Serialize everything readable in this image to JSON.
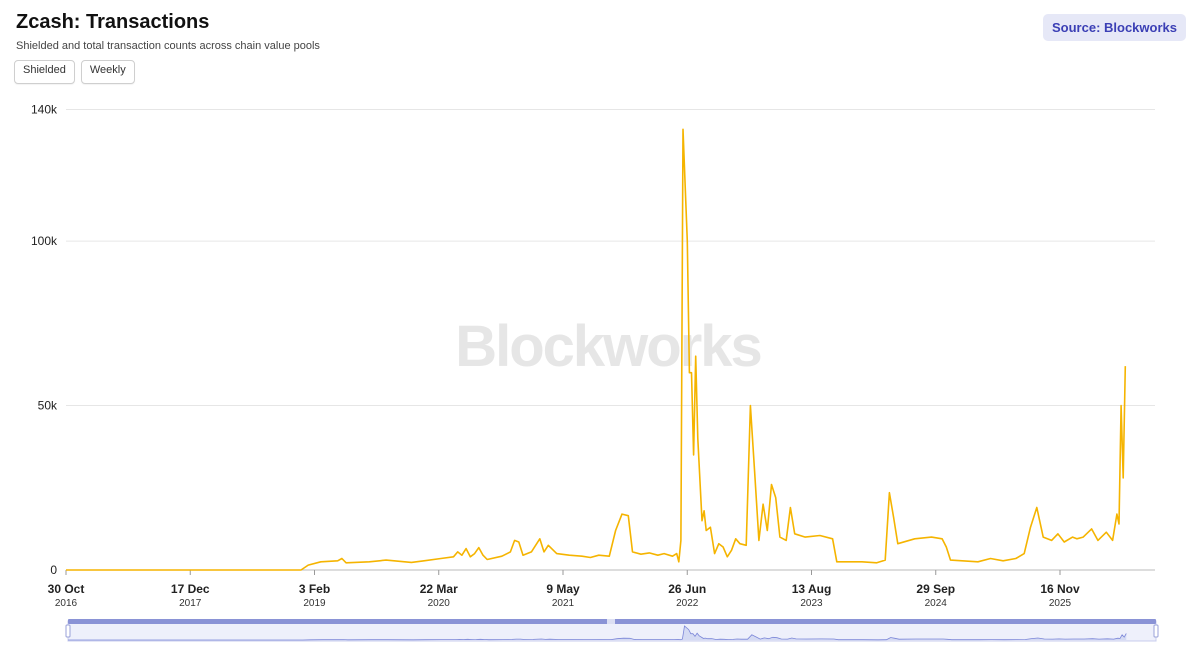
{
  "header": {
    "title": "Zcash: Transactions",
    "subtitle": "Shielded and total transaction counts across chain value pools"
  },
  "controls": {
    "metric_label": "Shielded",
    "interval_label": "Weekly"
  },
  "source_button": {
    "label": "Source: Blockworks"
  },
  "watermark": "Blockworks",
  "colors": {
    "line": "#f5b400",
    "grid": "#e6e6e6",
    "navigator_fill": "#c9d0f0",
    "navigator_handle": "#8a93d6",
    "navigator_line": "#7b86d8"
  },
  "chart_data": {
    "type": "line",
    "x_axis": {
      "range": [
        "2016-10-30",
        "2026-01-18"
      ],
      "ticks": [
        {
          "date": "2016-10-30",
          "label": "30 Oct",
          "year": "2016"
        },
        {
          "date": "2017-12-17",
          "label": "17 Dec",
          "year": "2017"
        },
        {
          "date": "2019-02-03",
          "label": "3 Feb",
          "year": "2019"
        },
        {
          "date": "2020-03-22",
          "label": "22 Mar",
          "year": "2020"
        },
        {
          "date": "2021-05-09",
          "label": "9 May",
          "year": "2021"
        },
        {
          "date": "2022-06-26",
          "label": "26 Jun",
          "year": "2022"
        },
        {
          "date": "2023-08-13",
          "label": "13 Aug",
          "year": "2023"
        },
        {
          "date": "2024-09-29",
          "label": "29 Sep",
          "year": "2024"
        },
        {
          "date": "2025-11-16",
          "label": "16 Nov",
          "year": "2025"
        }
      ]
    },
    "y_axis": {
      "range": [
        0,
        135000
      ],
      "ticks": [
        {
          "value": 0,
          "label": "0"
        },
        {
          "value": 50000,
          "label": "50k"
        },
        {
          "value": 100000,
          "label": "100k"
        },
        {
          "value": 140000,
          "label": "140k"
        }
      ],
      "grid": true
    },
    "series": [
      {
        "points": [
          [
            "2016-10-30",
            0
          ],
          [
            "2017-06-01",
            0
          ],
          [
            "2018-01-01",
            0
          ],
          [
            "2018-06-01",
            0
          ],
          [
            "2018-12-20",
            0
          ],
          [
            "2019-01-13",
            1500
          ],
          [
            "2019-02-24",
            2500
          ],
          [
            "2019-04-21",
            2800
          ],
          [
            "2019-05-05",
            3500
          ],
          [
            "2019-05-19",
            2200
          ],
          [
            "2019-08-04",
            2500
          ],
          [
            "2019-09-29",
            3000
          ],
          [
            "2019-12-22",
            2300
          ],
          [
            "2020-02-02",
            2800
          ],
          [
            "2020-03-29",
            3500
          ],
          [
            "2020-05-10",
            4000
          ],
          [
            "2020-05-24",
            5500
          ],
          [
            "2020-06-07",
            4500
          ],
          [
            "2020-06-21",
            6500
          ],
          [
            "2020-07-05",
            4000
          ],
          [
            "2020-07-19",
            5000
          ],
          [
            "2020-08-02",
            6800
          ],
          [
            "2020-08-16",
            4500
          ],
          [
            "2020-08-30",
            3200
          ],
          [
            "2020-10-18",
            4200
          ],
          [
            "2020-11-15",
            5500
          ],
          [
            "2020-11-29",
            9000
          ],
          [
            "2020-12-13",
            8500
          ],
          [
            "2020-12-27",
            4500
          ],
          [
            "2021-01-24",
            5500
          ],
          [
            "2021-02-21",
            9500
          ],
          [
            "2021-03-07",
            5500
          ],
          [
            "2021-03-21",
            7500
          ],
          [
            "2021-04-18",
            5000
          ],
          [
            "2021-05-30",
            4500
          ],
          [
            "2021-07-11",
            4200
          ],
          [
            "2021-08-08",
            3800
          ],
          [
            "2021-09-05",
            4500
          ],
          [
            "2021-10-10",
            4200
          ],
          [
            "2021-10-31",
            12000
          ],
          [
            "2021-11-21",
            17000
          ],
          [
            "2021-12-12",
            16500
          ],
          [
            "2021-12-26",
            5500
          ],
          [
            "2022-01-23",
            4800
          ],
          [
            "2022-02-20",
            5200
          ],
          [
            "2022-03-20",
            4500
          ],
          [
            "2022-04-10",
            5000
          ],
          [
            "2022-05-08",
            4200
          ],
          [
            "2022-05-22",
            5000
          ],
          [
            "2022-05-29",
            2500
          ],
          [
            "2022-06-05",
            9000
          ],
          [
            "2022-06-12",
            134000
          ],
          [
            "2022-06-26",
            100000
          ],
          [
            "2022-07-03",
            60000
          ],
          [
            "2022-07-10",
            60000
          ],
          [
            "2022-07-17",
            35000
          ],
          [
            "2022-07-24",
            65000
          ],
          [
            "2022-07-31",
            40000
          ],
          [
            "2022-08-14",
            15000
          ],
          [
            "2022-08-21",
            18000
          ],
          [
            "2022-08-28",
            12000
          ],
          [
            "2022-09-11",
            13000
          ],
          [
            "2022-09-25",
            5000
          ],
          [
            "2022-10-09",
            8000
          ],
          [
            "2022-10-23",
            7000
          ],
          [
            "2022-11-06",
            4000
          ],
          [
            "2022-11-20",
            6000
          ],
          [
            "2022-12-04",
            9500
          ],
          [
            "2022-12-18",
            8000
          ],
          [
            "2023-01-08",
            7500
          ],
          [
            "2023-01-22",
            50000
          ],
          [
            "2023-02-05",
            30000
          ],
          [
            "2023-02-19",
            9000
          ],
          [
            "2023-03-05",
            20000
          ],
          [
            "2023-03-19",
            12000
          ],
          [
            "2023-04-02",
            26000
          ],
          [
            "2023-04-16",
            22000
          ],
          [
            "2023-04-30",
            10000
          ],
          [
            "2023-05-21",
            9000
          ],
          [
            "2023-06-04",
            19000
          ],
          [
            "2023-06-18",
            11000
          ],
          [
            "2023-07-23",
            10000
          ],
          [
            "2023-09-10",
            10500
          ],
          [
            "2023-10-22",
            9500
          ],
          [
            "2023-11-05",
            2500
          ],
          [
            "2024-01-28",
            2500
          ],
          [
            "2024-03-17",
            2200
          ],
          [
            "2024-04-14",
            3000
          ],
          [
            "2024-04-28",
            23500
          ],
          [
            "2024-05-12",
            16000
          ],
          [
            "2024-05-26",
            8000
          ],
          [
            "2024-07-21",
            9500
          ],
          [
            "2024-09-15",
            10000
          ],
          [
            "2024-10-20",
            9500
          ],
          [
            "2024-11-03",
            7000
          ],
          [
            "2024-11-17",
            3000
          ],
          [
            "2025-02-16",
            2500
          ],
          [
            "2025-03-30",
            3500
          ],
          [
            "2025-05-11",
            2800
          ],
          [
            "2025-06-22",
            3500
          ],
          [
            "2025-07-20",
            5000
          ],
          [
            "2025-08-10",
            13000
          ],
          [
            "2025-08-31",
            19000
          ],
          [
            "2025-09-21",
            10000
          ],
          [
            "2025-10-19",
            9000
          ],
          [
            "2025-11-09",
            11000
          ],
          [
            "2025-11-30",
            8500
          ],
          [
            "2025-12-28",
            10000
          ],
          [
            "2026-01-11",
            9500
          ],
          [
            "2026-02-01",
            10000
          ],
          [
            "2026-03-01",
            12500
          ],
          [
            "2026-03-22",
            9000
          ],
          [
            "2026-04-19",
            11500
          ],
          [
            "2026-05-10",
            9000
          ],
          [
            "2026-05-24",
            17000
          ],
          [
            "2026-05-31",
            14000
          ],
          [
            "2026-06-07",
            50000
          ],
          [
            "2026-06-14",
            28000
          ],
          [
            "2026-06-21",
            62000
          ]
        ]
      }
    ]
  }
}
